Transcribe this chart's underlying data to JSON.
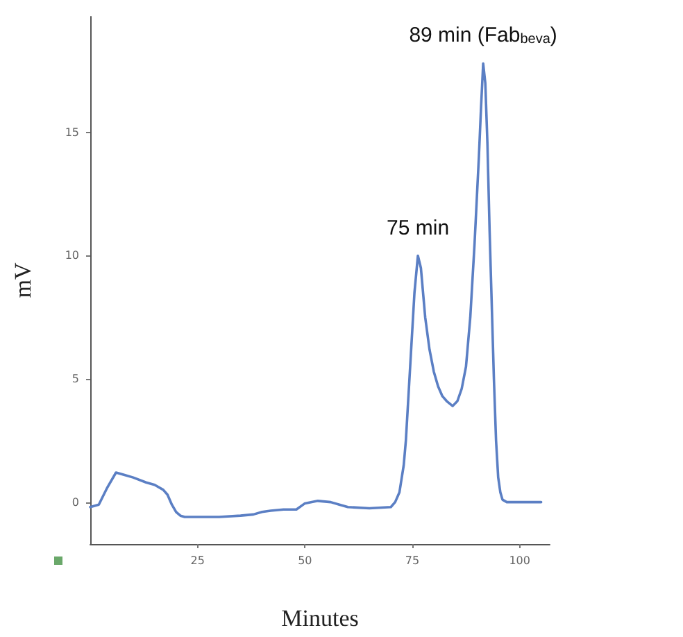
{
  "chart_data": {
    "type": "line",
    "xlabel": "Minutes",
    "ylabel": "mV",
    "x": [
      0,
      2,
      4,
      6,
      8,
      10,
      13,
      15,
      17,
      18,
      19,
      20,
      21,
      22,
      25,
      30,
      35,
      38,
      40,
      42,
      45,
      48,
      50,
      53,
      56,
      58,
      60,
      65,
      70,
      71,
      72,
      73,
      73.5,
      74,
      74.5,
      75,
      75.5,
      76.3,
      77,
      77.5,
      78,
      79,
      80,
      81,
      82,
      83,
      84.4,
      85.5,
      86.5,
      87.5,
      88.5,
      89.5,
      90.5,
      91,
      91.5,
      92,
      92.5,
      93,
      93.5,
      94,
      94.5,
      95,
      95.5,
      96,
      97,
      100,
      105
    ],
    "series": [
      {
        "color": "#5b7fc4",
        "values": [
          -0.2,
          -0.1,
          0.6,
          1.2,
          1.1,
          1.0,
          0.8,
          0.7,
          0.5,
          0.3,
          -0.1,
          -0.4,
          -0.55,
          -0.6,
          -0.6,
          -0.6,
          -0.55,
          -0.5,
          -0.4,
          -0.35,
          -0.3,
          -0.3,
          -0.05,
          0.05,
          0.0,
          -0.1,
          -0.2,
          -0.25,
          -0.2,
          0.0,
          0.4,
          1.5,
          2.5,
          4,
          5.5,
          7,
          8.5,
          10,
          9.5,
          8.5,
          7.5,
          6.2,
          5.3,
          4.7,
          4.3,
          4.1,
          3.9,
          4.1,
          4.6,
          5.5,
          7.5,
          10.5,
          14,
          16,
          17.8,
          17,
          14.5,
          11,
          8,
          5,
          2.5,
          1,
          0.4,
          0.1,
          0.0,
          0.0,
          0.0
        ]
      }
    ],
    "xlim": [
      0,
      107
    ],
    "xticks": [
      25,
      50,
      75,
      100
    ],
    "ylim": [
      -1.7,
      19.7
    ],
    "yticks": [
      0,
      5,
      10,
      15
    ],
    "grid": false,
    "marker": "none",
    "line_style": "solid",
    "annotations": [
      {
        "text": "75 min",
        "x": 76.3,
        "y": 10
      },
      {
        "text": "89 min (Fab$_{beva}$)",
        "x": 91.5,
        "y": 17.8
      }
    ]
  }
}
